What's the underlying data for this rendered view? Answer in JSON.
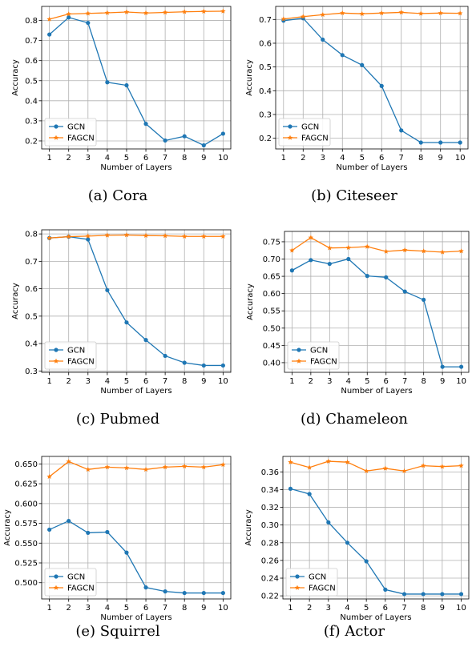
{
  "colors": {
    "GCN": "#1f77b4",
    "FAGCN": "#ff7f0e"
  },
  "chart_data": [
    {
      "type": "line",
      "caption": "(a) Cora",
      "xlabel": "Number of Layers",
      "ylabel": "Accuracy",
      "x": [
        1,
        2,
        3,
        4,
        5,
        6,
        7,
        8,
        9,
        10
      ],
      "xticks": [
        "1",
        "2",
        "3",
        "4",
        "5",
        "6",
        "7",
        "8",
        "9",
        "10"
      ],
      "ylim": [
        0.16,
        0.87
      ],
      "yticks": [
        0.2,
        0.3,
        0.4,
        0.5,
        0.6,
        0.7,
        0.8
      ],
      "ytick_labels": [
        "0.2",
        "0.3",
        "0.4",
        "0.5",
        "0.6",
        "0.7",
        "0.8"
      ],
      "grid": true,
      "legend": "lower-left",
      "series": [
        {
          "name": "GCN",
          "marker": "circle",
          "values": [
            0.73,
            0.815,
            0.788,
            0.492,
            0.477,
            0.285,
            0.202,
            0.223,
            0.178,
            0.236
          ]
        },
        {
          "name": "FAGCN",
          "marker": "star",
          "values": [
            0.806,
            0.832,
            0.835,
            0.838,
            0.842,
            0.837,
            0.84,
            0.843,
            0.845,
            0.846
          ]
        }
      ]
    },
    {
      "type": "line",
      "caption": "(b) Citeseer",
      "xlabel": "Number of Layers",
      "ylabel": "Accuracy",
      "x": [
        1,
        2,
        3,
        4,
        5,
        6,
        7,
        8,
        9,
        10
      ],
      "xticks": [
        "1",
        "2",
        "3",
        "4",
        "5",
        "6",
        "7",
        "8",
        "9",
        "10"
      ],
      "ylim": [
        0.155,
        0.755
      ],
      "yticks": [
        0.2,
        0.3,
        0.4,
        0.5,
        0.6,
        0.7
      ],
      "ytick_labels": [
        "0.2",
        "0.3",
        "0.4",
        "0.5",
        "0.6",
        "0.7"
      ],
      "grid": true,
      "legend": "lower-left",
      "series": [
        {
          "name": "GCN",
          "marker": "circle",
          "values": [
            0.695,
            0.705,
            0.615,
            0.55,
            0.508,
            0.42,
            0.233,
            0.182,
            0.182,
            0.182
          ]
        },
        {
          "name": "FAGCN",
          "marker": "star",
          "values": [
            0.702,
            0.712,
            0.72,
            0.727,
            0.724,
            0.727,
            0.73,
            0.725,
            0.727,
            0.726
          ]
        }
      ]
    },
    {
      "type": "line",
      "caption": "(c) Pubmed",
      "xlabel": "Number of Layers",
      "ylabel": "Accuracy",
      "x": [
        1,
        2,
        3,
        4,
        5,
        6,
        7,
        8,
        9,
        10
      ],
      "xticks": [
        "1",
        "2",
        "3",
        "4",
        "5",
        "6",
        "7",
        "8",
        "9",
        "10"
      ],
      "ylim": [
        0.295,
        0.815
      ],
      "yticks": [
        0.3,
        0.4,
        0.5,
        0.6,
        0.7,
        0.8
      ],
      "ytick_labels": [
        "0.3",
        "0.4",
        "0.5",
        "0.6",
        "0.7",
        "0.8"
      ],
      "grid": true,
      "legend": "lower-left",
      "series": [
        {
          "name": "GCN",
          "marker": "circle",
          "values": [
            0.785,
            0.79,
            0.78,
            0.595,
            0.477,
            0.413,
            0.355,
            0.33,
            0.32,
            0.32
          ]
        },
        {
          "name": "FAGCN",
          "marker": "star",
          "values": [
            0.785,
            0.79,
            0.792,
            0.795,
            0.796,
            0.794,
            0.793,
            0.791,
            0.791,
            0.791
          ]
        }
      ]
    },
    {
      "type": "line",
      "caption": "(d) Chameleon",
      "xlabel": "Number of Layers",
      "ylabel": "Accuracy",
      "x": [
        1,
        2,
        3,
        4,
        5,
        6,
        7,
        8,
        9,
        10
      ],
      "xticks": [
        "1",
        "2",
        "3",
        "4",
        "5",
        "6",
        "7",
        "8",
        "9",
        "10"
      ],
      "ylim": [
        0.372,
        0.78
      ],
      "yticks": [
        0.4,
        0.45,
        0.5,
        0.55,
        0.6,
        0.65,
        0.7,
        0.75
      ],
      "ytick_labels": [
        "0.40",
        "0.45",
        "0.50",
        "0.55",
        "0.60",
        "0.65",
        "0.70",
        "0.75"
      ],
      "grid": true,
      "legend": "lower-left",
      "series": [
        {
          "name": "GCN",
          "marker": "circle",
          "values": [
            0.667,
            0.697,
            0.686,
            0.7,
            0.651,
            0.647,
            0.606,
            0.582,
            0.388,
            0.388
          ]
        },
        {
          "name": "FAGCN",
          "marker": "star",
          "values": [
            0.725,
            0.762,
            0.732,
            0.733,
            0.736,
            0.722,
            0.726,
            0.723,
            0.72,
            0.723
          ]
        }
      ]
    },
    {
      "type": "line",
      "caption": "(e) Squirrel",
      "xlabel": "Number of Layers",
      "ylabel": "Accuracy",
      "x": [
        1,
        2,
        3,
        4,
        5,
        6,
        7,
        8,
        9,
        10
      ],
      "xticks": [
        "1",
        "2",
        "3",
        "4",
        "5",
        "6",
        "7",
        "8",
        "9",
        "10"
      ],
      "ylim": [
        0.4795,
        0.6595
      ],
      "yticks": [
        0.5,
        0.525,
        0.55,
        0.575,
        0.6,
        0.625,
        0.65
      ],
      "ytick_labels": [
        "0.500",
        "0.525",
        "0.550",
        "0.575",
        "0.600",
        "0.625",
        "0.650"
      ],
      "grid": true,
      "legend": "lower-left",
      "series": [
        {
          "name": "GCN",
          "marker": "circle",
          "values": [
            0.567,
            0.578,
            0.563,
            0.564,
            0.538,
            0.494,
            0.489,
            0.487,
            0.487,
            0.487
          ]
        },
        {
          "name": "FAGCN",
          "marker": "star",
          "values": [
            0.634,
            0.653,
            0.643,
            0.646,
            0.645,
            0.643,
            0.646,
            0.647,
            0.646,
            0.649
          ]
        }
      ]
    },
    {
      "type": "line",
      "caption": "(f) Actor",
      "xlabel": "Number of Layers",
      "ylabel": "Accuracy",
      "x": [
        1,
        2,
        3,
        4,
        5,
        6,
        7,
        8,
        9,
        10
      ],
      "xticks": [
        "1",
        "2",
        "3",
        "4",
        "5",
        "6",
        "7",
        "8",
        "9",
        "10"
      ],
      "ylim": [
        0.2165,
        0.3775
      ],
      "yticks": [
        0.22,
        0.24,
        0.26,
        0.28,
        0.3,
        0.32,
        0.34,
        0.36
      ],
      "ytick_labels": [
        "0.22",
        "0.24",
        "0.26",
        "0.28",
        "0.30",
        "0.32",
        "0.34",
        "0.36"
      ],
      "grid": true,
      "legend": "lower-left",
      "series": [
        {
          "name": "GCN",
          "marker": "circle",
          "values": [
            0.341,
            0.335,
            0.303,
            0.28,
            0.259,
            0.227,
            0.222,
            0.222,
            0.222,
            0.222
          ]
        },
        {
          "name": "FAGCN",
          "marker": "star",
          "values": [
            0.371,
            0.365,
            0.372,
            0.371,
            0.361,
            0.364,
            0.361,
            0.367,
            0.366,
            0.367
          ]
        }
      ]
    }
  ]
}
